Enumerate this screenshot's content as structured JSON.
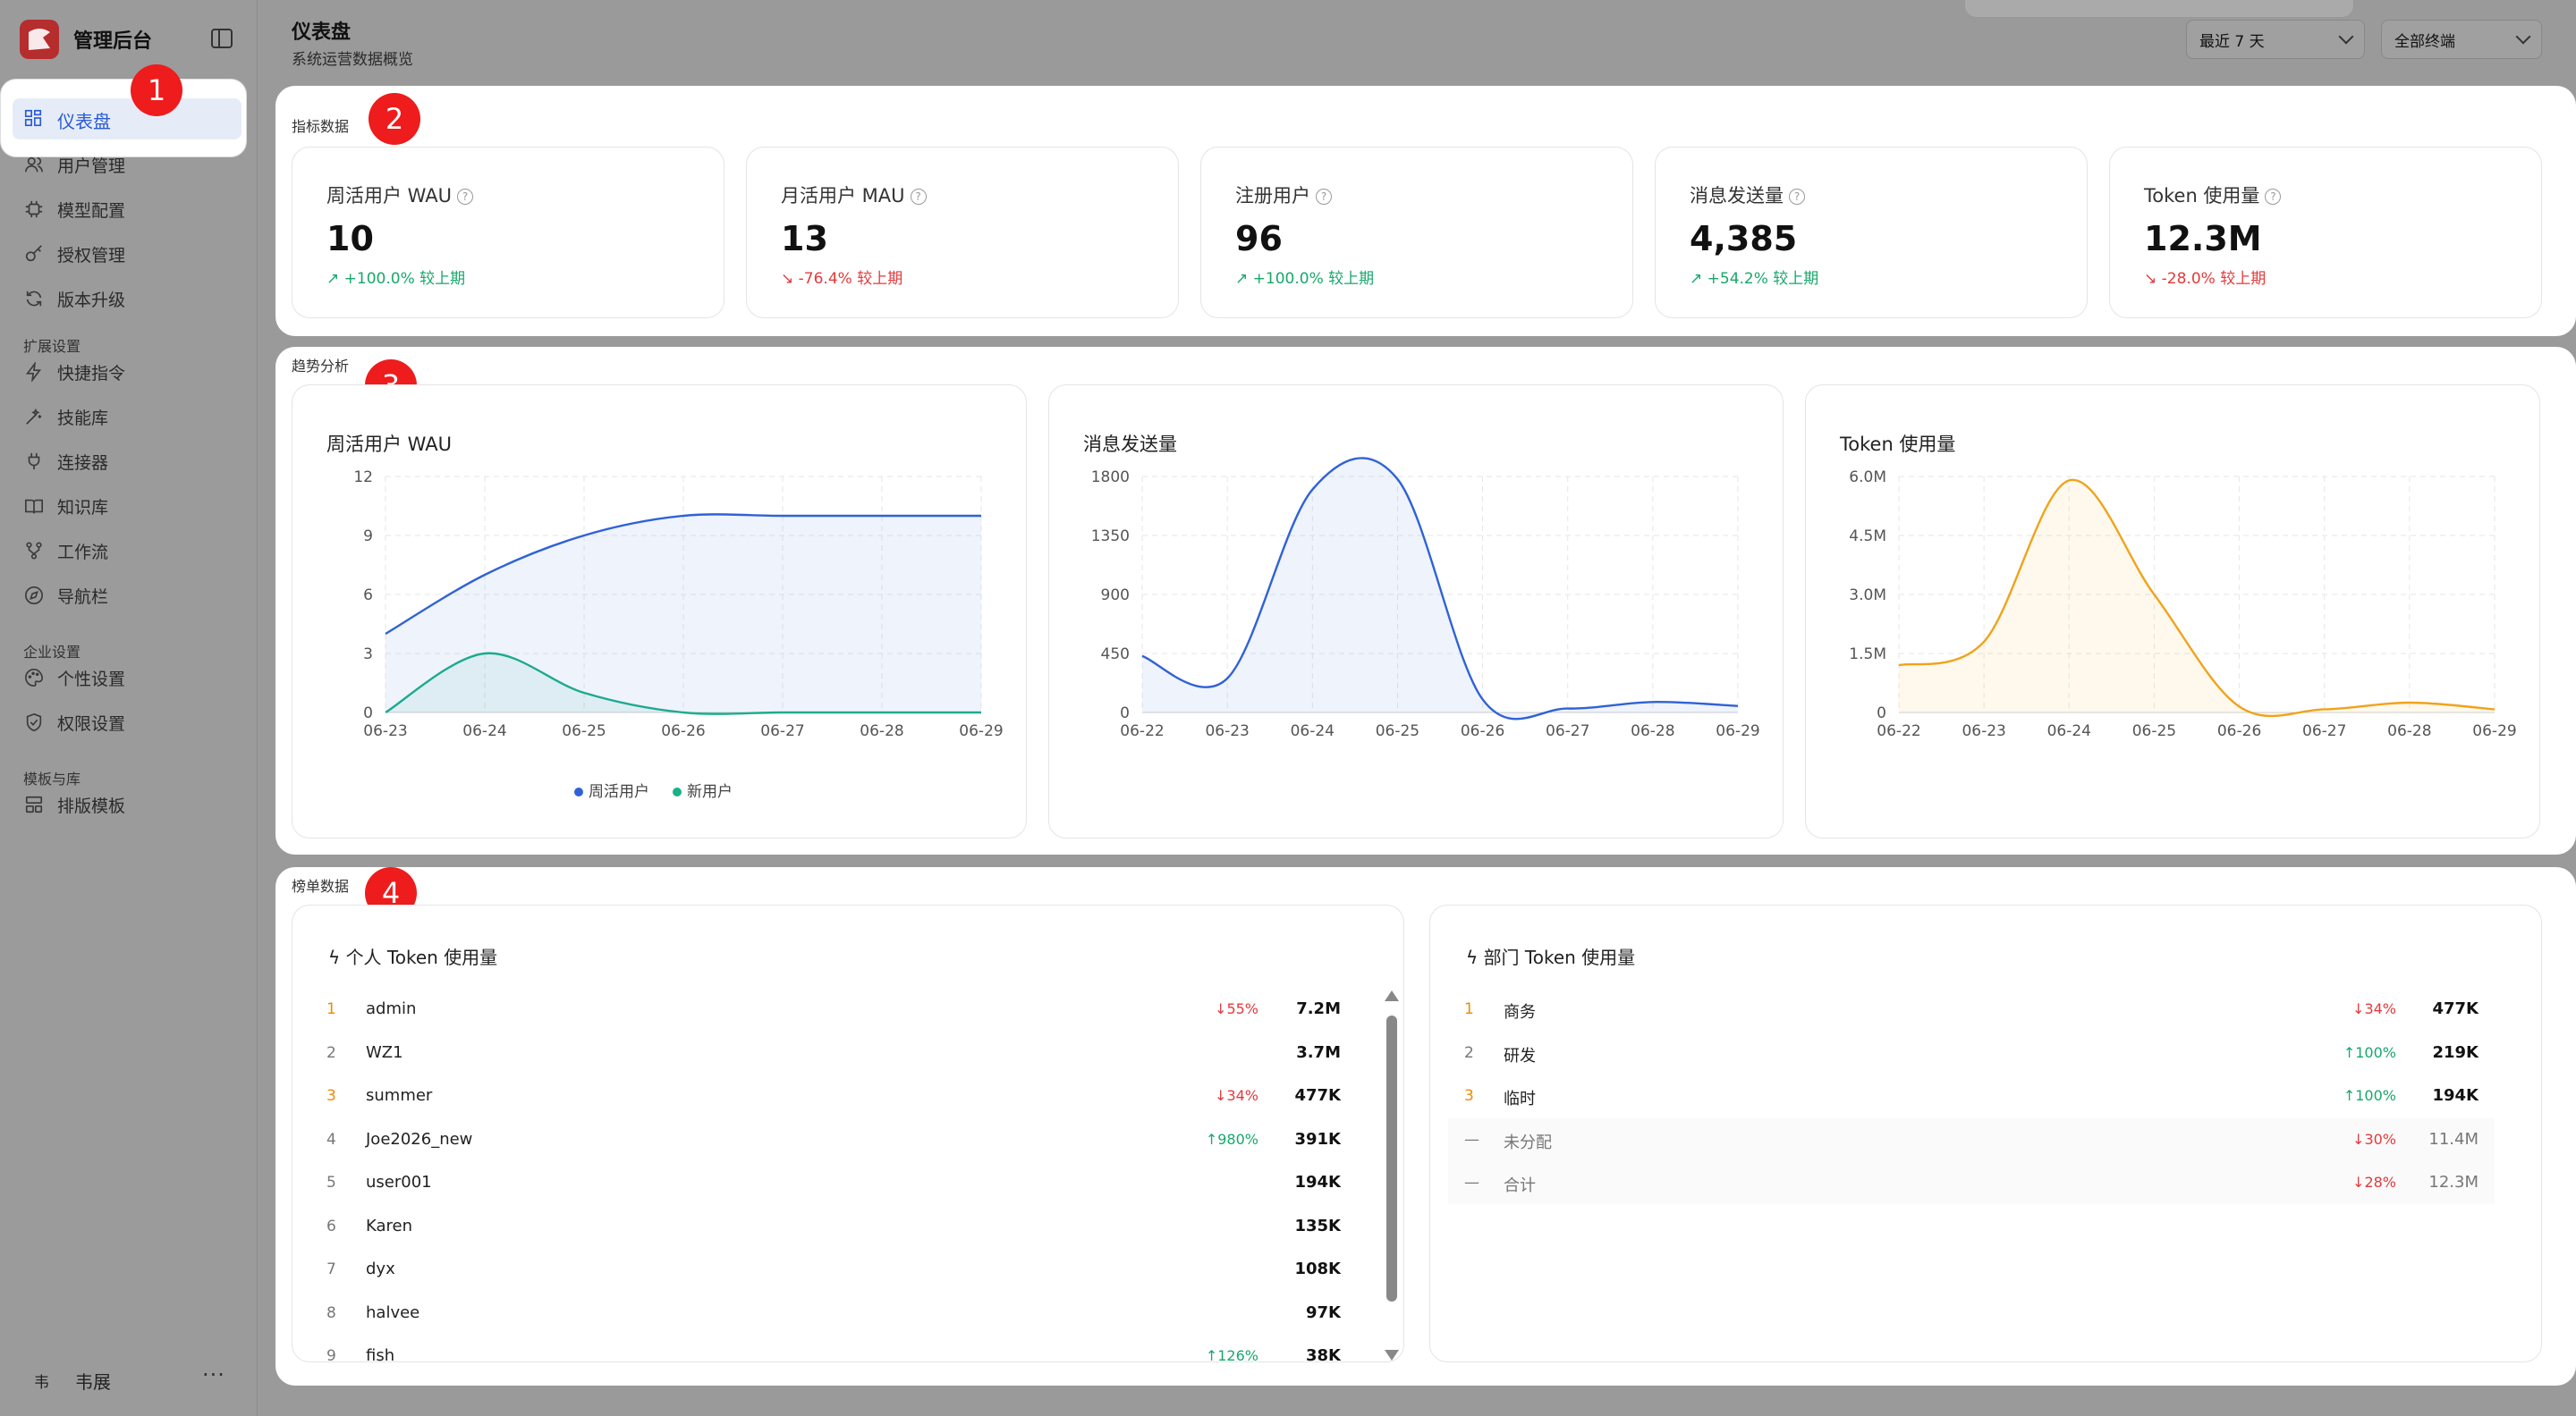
{
  "app": {
    "title": "管理后台"
  },
  "sidebar": {
    "active": {
      "label": "仪表盘",
      "icon": "dashboard-icon"
    },
    "items": [
      {
        "label": "用户管理",
        "icon": "users-icon"
      },
      {
        "label": "模型配置",
        "icon": "chip-icon"
      },
      {
        "label": "授权管理",
        "icon": "key-icon"
      },
      {
        "label": "版本升级",
        "icon": "refresh-icon"
      }
    ],
    "groups": [
      {
        "title": "扩展设置",
        "items": [
          {
            "label": "快捷指令",
            "icon": "bolt-icon"
          },
          {
            "label": "技能库",
            "icon": "wand-icon"
          },
          {
            "label": "连接器",
            "icon": "plug-icon"
          },
          {
            "label": "知识库",
            "icon": "book-icon"
          },
          {
            "label": "工作流",
            "icon": "workflow-icon"
          },
          {
            "label": "导航栏",
            "icon": "compass-icon"
          }
        ]
      },
      {
        "title": "企业设置",
        "items": [
          {
            "label": "个性设置",
            "icon": "palette-icon"
          },
          {
            "label": "权限设置",
            "icon": "shield-icon"
          }
        ]
      },
      {
        "title": "模板与库",
        "items": [
          {
            "label": "排版模板",
            "icon": "layout-icon"
          }
        ]
      }
    ],
    "user": {
      "avatar": "韦",
      "name": "韦展",
      "more": "···"
    }
  },
  "header": {
    "title": "仪表盘",
    "subtitle": "系统运营数据概览",
    "range_select": "最近 7 天",
    "terminal_select": "全部终端"
  },
  "annotations": [
    "1",
    "2",
    "3",
    "4"
  ],
  "metrics": {
    "section_label": "指标数据",
    "cards": [
      {
        "title": "周活用户 WAU",
        "value": "10",
        "delta": "+100.0% 较上期",
        "trend": "up"
      },
      {
        "title": "月活用户 MAU",
        "value": "13",
        "delta": "-76.4% 较上期",
        "trend": "down"
      },
      {
        "title": "注册用户",
        "value": "96",
        "delta": "+100.0% 较上期",
        "trend": "up"
      },
      {
        "title": "消息发送量",
        "value": "4,385",
        "delta": "+54.2% 较上期",
        "trend": "up"
      },
      {
        "title": "Token 使用量",
        "value": "12.3M",
        "delta": "-28.0% 较上期",
        "trend": "down"
      }
    ]
  },
  "trends": {
    "section_label": "趋势分析"
  },
  "chart_data": [
    {
      "type": "area",
      "title": "周活用户 WAU",
      "categories": [
        "06-23",
        "06-24",
        "06-25",
        "06-26",
        "06-27",
        "06-28",
        "06-29"
      ],
      "y_ticks": [
        "0",
        "3",
        "6",
        "9",
        "12"
      ],
      "ylim": [
        0,
        12
      ],
      "series": [
        {
          "name": "周活用户",
          "color": "#2f62d6",
          "values": [
            4,
            7,
            9,
            10,
            10,
            10,
            10
          ]
        },
        {
          "name": "新用户",
          "color": "#1bb08a",
          "values": [
            0,
            3,
            1,
            0,
            0,
            0,
            0
          ]
        }
      ],
      "legend": "bottom",
      "grid": true
    },
    {
      "type": "area",
      "title": "消息发送量",
      "categories": [
        "06-22",
        "06-23",
        "06-24",
        "06-25",
        "06-26",
        "06-27",
        "06-28",
        "06-29"
      ],
      "y_ticks": [
        "0",
        "450",
        "900",
        "1350",
        "1800"
      ],
      "ylim": [
        0,
        1800
      ],
      "series": [
        {
          "color": "#2f62d6",
          "values": [
            430,
            260,
            1700,
            1780,
            100,
            30,
            80,
            50
          ]
        }
      ],
      "grid": true
    },
    {
      "type": "area",
      "title": "Token 使用量",
      "categories": [
        "06-22",
        "06-23",
        "06-24",
        "06-25",
        "06-26",
        "06-27",
        "06-28",
        "06-29"
      ],
      "y_ticks": [
        "0",
        "1.5M",
        "3.0M",
        "4.5M",
        "6.0M"
      ],
      "ylim": [
        0,
        6000000
      ],
      "series": [
        {
          "color": "#f0a31a",
          "values": [
            1200000,
            1800000,
            5900000,
            3000000,
            150000,
            80000,
            250000,
            80000
          ]
        }
      ],
      "grid": true
    }
  ],
  "rankings": {
    "section_label": "榜单数据",
    "personal": {
      "title": "个人 Token 使用量",
      "rows": [
        {
          "rank": "1",
          "name": "admin",
          "delta": "↓55%",
          "trend": "down",
          "value": "7.2M"
        },
        {
          "rank": "2",
          "name": "WZ1",
          "delta": "",
          "trend": "",
          "value": "3.7M"
        },
        {
          "rank": "3",
          "name": "summer",
          "delta": "↓34%",
          "trend": "down",
          "value": "477K"
        },
        {
          "rank": "4",
          "name": "Joe2026_new",
          "delta": "↑980%",
          "trend": "up",
          "value": "391K"
        },
        {
          "rank": "5",
          "name": "user001",
          "delta": "",
          "trend": "",
          "value": "194K"
        },
        {
          "rank": "6",
          "name": "Karen",
          "delta": "",
          "trend": "",
          "value": "135K"
        },
        {
          "rank": "7",
          "name": "dyx",
          "delta": "",
          "trend": "",
          "value": "108K"
        },
        {
          "rank": "8",
          "name": "halvee",
          "delta": "",
          "trend": "",
          "value": "97K"
        },
        {
          "rank": "9",
          "name": "fish",
          "delta": "↑126%",
          "trend": "up",
          "value": "38K"
        }
      ]
    },
    "department": {
      "title": "部门 Token 使用量",
      "rows": [
        {
          "rank": "1",
          "name": "商务",
          "delta": "↓34%",
          "trend": "down",
          "value": "477K"
        },
        {
          "rank": "2",
          "name": "研发",
          "delta": "↑100%",
          "trend": "up",
          "value": "219K"
        },
        {
          "rank": "3",
          "name": "临时",
          "delta": "↑100%",
          "trend": "up",
          "value": "194K"
        },
        {
          "rank": "—",
          "name": "未分配",
          "delta": "↓30%",
          "trend": "down",
          "value": "11.4M",
          "muted": true
        },
        {
          "rank": "—",
          "name": "合计",
          "delta": "↓28%",
          "trend": "down",
          "value": "12.3M",
          "muted": true
        }
      ]
    }
  }
}
